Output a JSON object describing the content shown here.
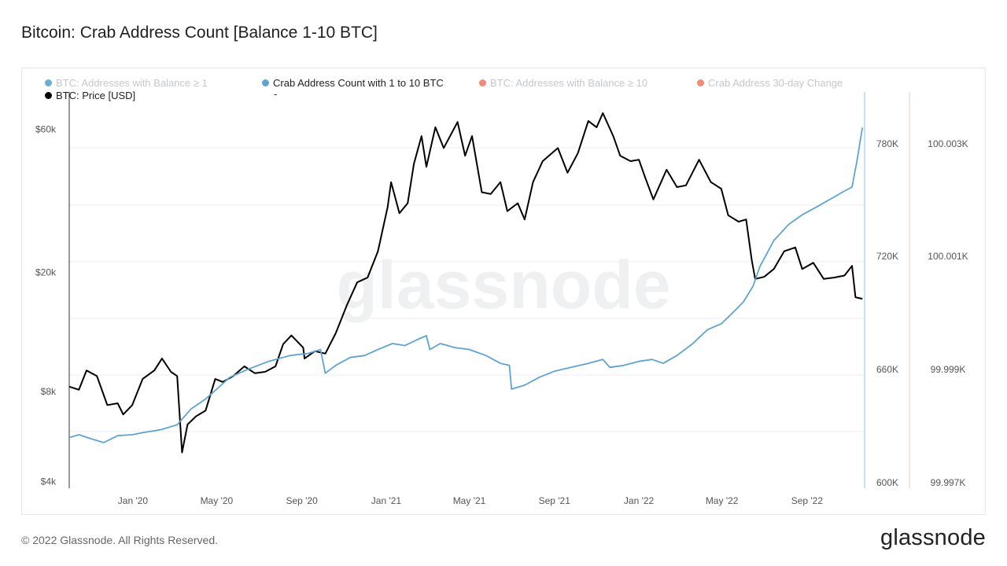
{
  "title": "Bitcoin: Crab Address Count [Balance 1-10 BTC]",
  "footer": "© 2022 Glassnode. All Rights Reserved.",
  "brand": "glassnode",
  "watermark": "glassnode",
  "legend": [
    {
      "label": "BTC: Addresses with Balance ≥ 1",
      "color": "#6aaed6",
      "active": false
    },
    {
      "label": "Crab Address Count with 1 to 10 BTC",
      "color": "#5ea4d2",
      "active": true
    },
    {
      "label": "BTC: Addresses with Balance ≥ 10",
      "color": "#f08b77",
      "active": false
    },
    {
      "label": "Crab Address 30-day Change",
      "color": "#f08b77",
      "active": false
    },
    {
      "label": "BTC: Price [USD]",
      "color": "#000000",
      "active": true
    },
    {
      "label": "-",
      "color": "",
      "active": true
    }
  ],
  "chart_data": {
    "type": "line",
    "x_ticks": [
      "Jan '20",
      "May '20",
      "Sep '20",
      "Jan '21",
      "May '21",
      "Sep '21",
      "Jan '22",
      "May '22",
      "Sep '22"
    ],
    "y_left": {
      "scale": "log",
      "ticks": [
        "$4k",
        "$8k",
        "$20k",
        "$60k"
      ],
      "tick_values": [
        4000,
        8000,
        20000,
        60000
      ],
      "range": [
        3800,
        80000
      ]
    },
    "y_right": {
      "ticks": [
        "600K",
        "660K",
        "720K",
        "780K"
      ],
      "tick_values": [
        600000,
        660000,
        720000,
        780000
      ],
      "range": [
        600000,
        800000
      ]
    },
    "y_right2": {
      "ticks": [
        "99.997K",
        "99.999K",
        "100.001K",
        "100.003K"
      ]
    },
    "series": [
      {
        "name": "BTC: Price [USD]",
        "color": "#000000",
        "axis": "left",
        "points": [
          [
            "2019-10-01",
            8300
          ],
          [
            "2019-10-15",
            8100
          ],
          [
            "2019-10-26",
            9400
          ],
          [
            "2019-11-10",
            9000
          ],
          [
            "2019-11-25",
            7200
          ],
          [
            "2019-12-10",
            7300
          ],
          [
            "2019-12-18",
            6700
          ],
          [
            "2019-12-31",
            7200
          ],
          [
            "2020-01-15",
            8800
          ],
          [
            "2020-02-01",
            9400
          ],
          [
            "2020-02-12",
            10300
          ],
          [
            "2020-02-25",
            9300
          ],
          [
            "2020-03-05",
            9000
          ],
          [
            "2020-03-12",
            5000
          ],
          [
            "2020-03-20",
            6200
          ],
          [
            "2020-04-01",
            6600
          ],
          [
            "2020-04-15",
            6900
          ],
          [
            "2020-04-29",
            8800
          ],
          [
            "2020-05-10",
            8600
          ],
          [
            "2020-05-25",
            9000
          ],
          [
            "2020-06-10",
            9700
          ],
          [
            "2020-06-25",
            9200
          ],
          [
            "2020-07-10",
            9300
          ],
          [
            "2020-07-25",
            9700
          ],
          [
            "2020-08-05",
            11500
          ],
          [
            "2020-08-17",
            12300
          ],
          [
            "2020-09-03",
            11200
          ],
          [
            "2020-09-05",
            10300
          ],
          [
            "2020-09-20",
            10900
          ],
          [
            "2020-10-05",
            10700
          ],
          [
            "2020-10-20",
            12500
          ],
          [
            "2020-11-05",
            15500
          ],
          [
            "2020-11-20",
            18500
          ],
          [
            "2020-12-05",
            19200
          ],
          [
            "2020-12-20",
            23500
          ],
          [
            "2021-01-03",
            33000
          ],
          [
            "2021-01-08",
            40000
          ],
          [
            "2021-01-20",
            31500
          ],
          [
            "2021-02-01",
            34000
          ],
          [
            "2021-02-10",
            46000
          ],
          [
            "2021-02-21",
            57000
          ],
          [
            "2021-02-28",
            45000
          ],
          [
            "2021-03-13",
            61000
          ],
          [
            "2021-03-25",
            52000
          ],
          [
            "2021-04-14",
            63500
          ],
          [
            "2021-04-25",
            49000
          ],
          [
            "2021-05-05",
            57000
          ],
          [
            "2021-05-19",
            37000
          ],
          [
            "2021-06-01",
            36500
          ],
          [
            "2021-06-15",
            40000
          ],
          [
            "2021-06-25",
            32000
          ],
          [
            "2021-07-10",
            34000
          ],
          [
            "2021-07-20",
            30000
          ],
          [
            "2021-08-01",
            40000
          ],
          [
            "2021-08-15",
            47000
          ],
          [
            "2021-09-06",
            52000
          ],
          [
            "2021-09-20",
            43000
          ],
          [
            "2021-10-05",
            50000
          ],
          [
            "2021-10-20",
            64000
          ],
          [
            "2021-11-01",
            61000
          ],
          [
            "2021-11-10",
            68000
          ],
          [
            "2021-11-25",
            57000
          ],
          [
            "2021-12-05",
            49000
          ],
          [
            "2021-12-20",
            47000
          ],
          [
            "2022-01-01",
            47500
          ],
          [
            "2022-01-10",
            41500
          ],
          [
            "2022-01-22",
            35000
          ],
          [
            "2022-02-10",
            44000
          ],
          [
            "2022-02-25",
            38500
          ],
          [
            "2022-03-10",
            39000
          ],
          [
            "2022-03-29",
            47500
          ],
          [
            "2022-04-15",
            40000
          ],
          [
            "2022-04-30",
            38000
          ],
          [
            "2022-05-10",
            31000
          ],
          [
            "2022-05-25",
            29500
          ],
          [
            "2022-06-05",
            30000
          ],
          [
            "2022-06-13",
            22000
          ],
          [
            "2022-06-18",
            19000
          ],
          [
            "2022-07-01",
            19300
          ],
          [
            "2022-07-15",
            20500
          ],
          [
            "2022-07-30",
            23500
          ],
          [
            "2022-08-15",
            24200
          ],
          [
            "2022-08-25",
            20500
          ],
          [
            "2022-09-10",
            21500
          ],
          [
            "2022-09-25",
            19000
          ],
          [
            "2022-10-10",
            19200
          ],
          [
            "2022-10-25",
            19500
          ],
          [
            "2022-11-05",
            21000
          ],
          [
            "2022-11-10",
            16500
          ],
          [
            "2022-11-20",
            16300
          ]
        ]
      },
      {
        "name": "Crab Address Count with 1 to 10 BTC",
        "color": "#5ea4d2",
        "axis": "right",
        "points": [
          [
            "2019-10-01",
            625500
          ],
          [
            "2019-10-15",
            627000
          ],
          [
            "2019-11-01",
            625000
          ],
          [
            "2019-11-20",
            623000
          ],
          [
            "2019-12-10",
            626500
          ],
          [
            "2019-12-31",
            627000
          ],
          [
            "2020-01-15",
            628000
          ],
          [
            "2020-02-10",
            629500
          ],
          [
            "2020-03-05",
            632000
          ],
          [
            "2020-03-25",
            640000
          ],
          [
            "2020-04-15",
            645000
          ],
          [
            "2020-05-01",
            650000
          ],
          [
            "2020-05-20",
            656000
          ],
          [
            "2020-06-15",
            660000
          ],
          [
            "2020-07-15",
            664000
          ],
          [
            "2020-08-15",
            667000
          ],
          [
            "2020-09-10",
            668000
          ],
          [
            "2020-09-28",
            670000
          ],
          [
            "2020-10-05",
            658000
          ],
          [
            "2020-10-20",
            662000
          ],
          [
            "2020-11-10",
            666000
          ],
          [
            "2020-12-01",
            667000
          ],
          [
            "2020-12-20",
            670000
          ],
          [
            "2021-01-10",
            673000
          ],
          [
            "2021-01-28",
            672000
          ],
          [
            "2021-02-15",
            675000
          ],
          [
            "2021-02-28",
            677000
          ],
          [
            "2021-03-05",
            670000
          ],
          [
            "2021-03-20",
            673000
          ],
          [
            "2021-04-10",
            671000
          ],
          [
            "2021-05-01",
            670000
          ],
          [
            "2021-05-25",
            667000
          ],
          [
            "2021-06-15",
            663000
          ],
          [
            "2021-06-28",
            662000
          ],
          [
            "2021-07-01",
            650000
          ],
          [
            "2021-07-20",
            652000
          ],
          [
            "2021-08-10",
            656000
          ],
          [
            "2021-09-01",
            659000
          ],
          [
            "2021-09-25",
            661000
          ],
          [
            "2021-10-20",
            663000
          ],
          [
            "2021-11-10",
            665000
          ],
          [
            "2021-11-20",
            661000
          ],
          [
            "2021-12-10",
            662000
          ],
          [
            "2022-01-01",
            664000
          ],
          [
            "2022-01-20",
            665000
          ],
          [
            "2022-02-05",
            663000
          ],
          [
            "2022-02-25",
            667000
          ],
          [
            "2022-03-20",
            673000
          ],
          [
            "2022-04-10",
            680000
          ],
          [
            "2022-04-30",
            683000
          ],
          [
            "2022-05-15",
            688000
          ],
          [
            "2022-06-01",
            694000
          ],
          [
            "2022-06-15",
            702000
          ],
          [
            "2022-06-25",
            712000
          ],
          [
            "2022-07-15",
            725000
          ],
          [
            "2022-08-05",
            733000
          ],
          [
            "2022-08-25",
            738000
          ],
          [
            "2022-09-15",
            742000
          ],
          [
            "2022-10-05",
            746000
          ],
          [
            "2022-10-25",
            750000
          ],
          [
            "2022-11-05",
            752000
          ],
          [
            "2022-11-12",
            765000
          ],
          [
            "2022-11-20",
            782000
          ]
        ]
      }
    ],
    "legend_position": "top",
    "grid": "horizontal"
  }
}
